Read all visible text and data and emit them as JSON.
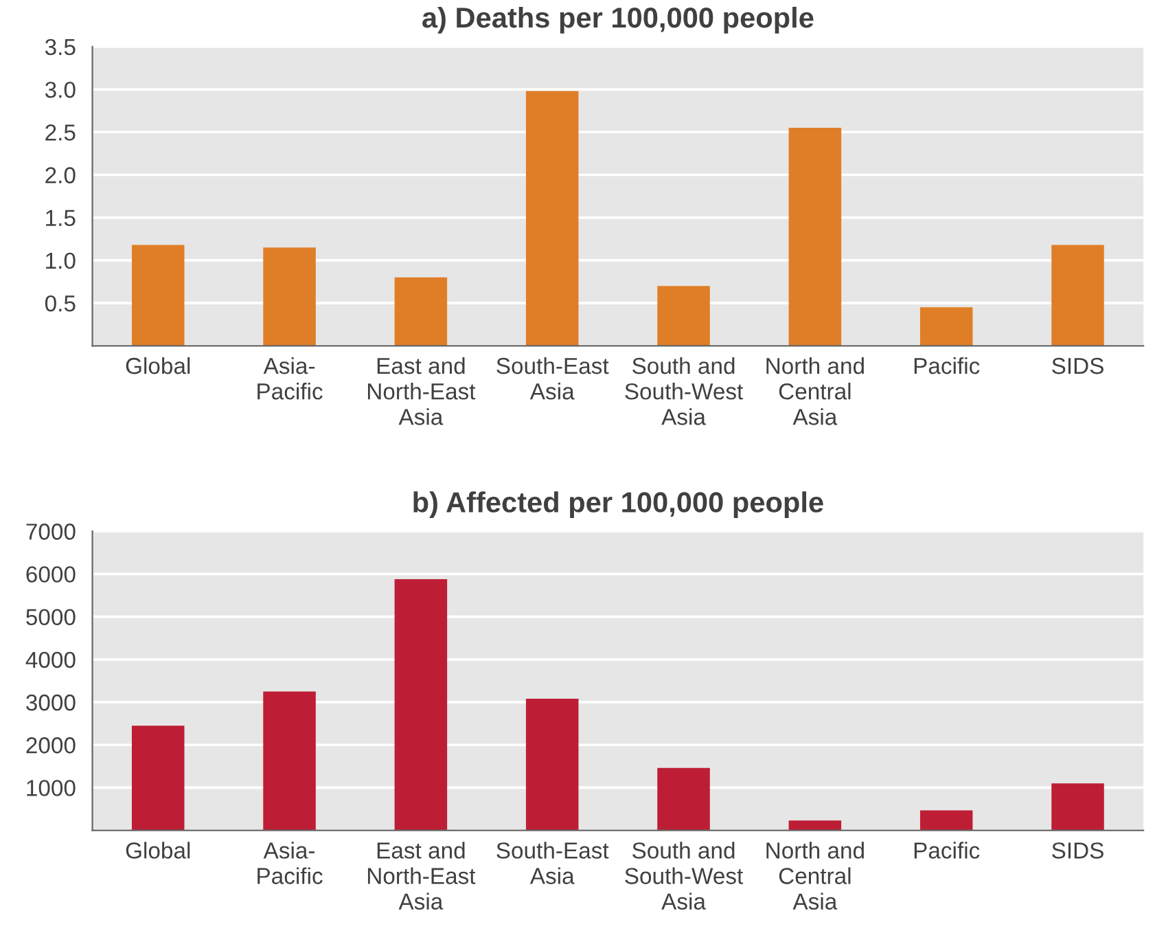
{
  "chart_data": [
    {
      "type": "bar",
      "title": "a) Deaths per 100,000 people",
      "categories": [
        "Global",
        "Asia-\nPacific",
        "East and\nNorth-East\nAsia",
        "South-East\nAsia",
        "South and\nSouth-West\nAsia",
        "North and\nCentral\nAsia",
        "Pacific",
        "SIDS"
      ],
      "values": [
        1.18,
        1.15,
        0.8,
        2.98,
        0.7,
        2.55,
        0.45,
        1.18
      ],
      "color": "#e07e27",
      "ylim": [
        0,
        3.5
      ],
      "yticks": [
        {
          "value": 0,
          "label": null
        },
        0.5,
        {
          "value": 1,
          "label": "1.0"
        },
        1.5,
        {
          "value": 2,
          "label": "2.0"
        },
        2.5,
        {
          "value": 3,
          "label": "3.0"
        },
        3.5
      ],
      "grid": "y"
    },
    {
      "type": "bar",
      "title": "b) Affected per 100,000 people",
      "categories": [
        "Global",
        "Asia-\nPacific",
        "East and\nNorth-East\nAsia",
        "South-East\nAsia",
        "South and\nSouth-West\nAsia",
        "North and\nCentral\nAsia",
        "Pacific",
        "SIDS"
      ],
      "values": [
        2450,
        3250,
        5880,
        3080,
        1460,
        230,
        470,
        1100
      ],
      "color": "#be1e35",
      "ylim": [
        0,
        7000
      ],
      "yticks": [
        {
          "value": 0,
          "label": null
        },
        1000,
        2000,
        3000,
        4000,
        5000,
        6000,
        7000
      ],
      "grid": "y"
    }
  ]
}
